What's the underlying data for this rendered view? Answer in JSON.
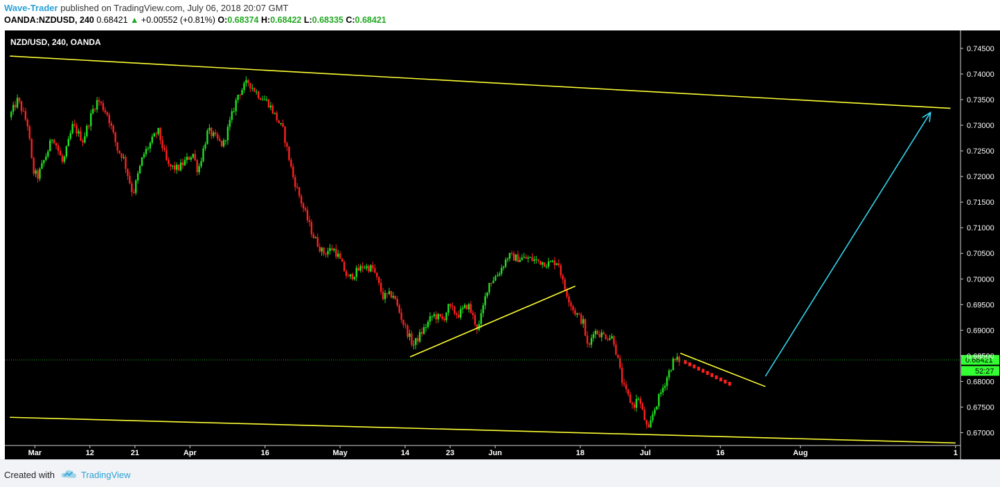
{
  "header": {
    "author": "Wave-Trader",
    "published_text": "published on TradingView.com, July 06, 2018 20:07 GMT",
    "symbol": "OANDA:NZDUSD, 240",
    "last": "0.68421",
    "change": "+0.00552 (+0.81%)",
    "o_label": "O:",
    "o_value": "0.68374",
    "h_label": "H:",
    "h_value": "0.68422",
    "l_label": "L:",
    "l_value": "0.68335",
    "c_label": "C:",
    "c_value": "0.68421"
  },
  "footer": {
    "created_with": "Created with",
    "brand": "TradingView"
  },
  "colors": {
    "background": "#000000",
    "up_candle": "#22e022",
    "down_candle": "#ff2020",
    "trendline": "#ffff33",
    "arrow": "#33d6f0",
    "price_line": "#22a822",
    "price_label_bg": "#33ff33",
    "axis_text": "#ffffff"
  },
  "chart_data": {
    "type": "candlestick",
    "title": "NZD/USD, 240, OANDA",
    "y_ticks": [
      "0.74500",
      "0.74000",
      "0.73500",
      "0.73000",
      "0.72500",
      "0.72000",
      "0.71500",
      "0.71000",
      "0.70500",
      "0.70000",
      "0.69500",
      "0.69000",
      "0.68500",
      "0.68000",
      "0.67500",
      "0.67000"
    ],
    "ylim": [
      0.6675,
      0.7485
    ],
    "x_ticks": [
      {
        "label": "Mar",
        "date": "2018-03-01"
      },
      {
        "label": "12",
        "date": "2018-03-12"
      },
      {
        "label": "21",
        "date": "2018-03-21"
      },
      {
        "label": "Apr",
        "date": "2018-04-01"
      },
      {
        "label": "16",
        "date": "2018-04-16"
      },
      {
        "label": "May",
        "date": "2018-05-01"
      },
      {
        "label": "14",
        "date": "2018-05-14"
      },
      {
        "label": "23",
        "date": "2018-05-23"
      },
      {
        "label": "Jun",
        "date": "2018-06-01"
      },
      {
        "label": "18",
        "date": "2018-06-18"
      },
      {
        "label": "Jul",
        "date": "2018-07-01"
      },
      {
        "label": "16",
        "date": "2018-07-16"
      },
      {
        "label": "Aug",
        "date": "2018-08-01"
      },
      {
        "label": "1",
        "date": "2018-09-01"
      }
    ],
    "current_price": "0.68421",
    "countdown": "52:27",
    "price_path": [
      [
        "2018-02-24",
        0.731
      ],
      [
        "2018-02-26",
        0.735
      ],
      [
        "2018-02-28",
        0.73
      ],
      [
        "2018-03-01",
        0.721
      ],
      [
        "2018-03-02",
        0.72
      ],
      [
        "2018-03-04",
        0.725
      ],
      [
        "2018-03-05",
        0.728
      ],
      [
        "2018-03-07",
        0.7225
      ],
      [
        "2018-03-09",
        0.73
      ],
      [
        "2018-03-11",
        0.727
      ],
      [
        "2018-03-13",
        0.733
      ],
      [
        "2018-03-14",
        0.735
      ],
      [
        "2018-03-16",
        0.732
      ],
      [
        "2018-03-18",
        0.725
      ],
      [
        "2018-03-19",
        0.724
      ],
      [
        "2018-03-21",
        0.7165
      ],
      [
        "2018-03-23",
        0.724
      ],
      [
        "2018-03-26",
        0.729
      ],
      [
        "2018-03-28",
        0.722
      ],
      [
        "2018-03-30",
        0.7215
      ],
      [
        "2018-04-02",
        0.7245
      ],
      [
        "2018-04-03",
        0.721
      ],
      [
        "2018-04-05",
        0.729
      ],
      [
        "2018-04-08",
        0.726
      ],
      [
        "2018-04-11",
        0.736
      ],
      [
        "2018-04-13",
        0.7385
      ],
      [
        "2018-04-15",
        0.736
      ],
      [
        "2018-04-17",
        0.7345
      ],
      [
        "2018-04-20",
        0.729
      ],
      [
        "2018-04-22",
        0.72
      ],
      [
        "2018-04-24",
        0.714
      ],
      [
        "2018-04-26",
        0.7085
      ],
      [
        "2018-04-28",
        0.705
      ],
      [
        "2018-04-30",
        0.706
      ],
      [
        "2018-05-01",
        0.7045
      ],
      [
        "2018-05-03",
        0.7
      ],
      [
        "2018-05-06",
        0.7025
      ],
      [
        "2018-05-08",
        0.702
      ],
      [
        "2018-05-10",
        0.6965
      ],
      [
        "2018-05-12",
        0.697
      ],
      [
        "2018-05-14",
        0.6915
      ],
      [
        "2018-05-16",
        0.687
      ],
      [
        "2018-05-18",
        0.69
      ],
      [
        "2018-05-20",
        0.693
      ],
      [
        "2018-05-22",
        0.692
      ],
      [
        "2018-05-23",
        0.6945
      ],
      [
        "2018-05-25",
        0.693
      ],
      [
        "2018-05-27",
        0.695
      ],
      [
        "2018-05-29",
        0.69
      ],
      [
        "2018-05-31",
        0.699
      ],
      [
        "2018-06-02",
        0.701
      ],
      [
        "2018-06-04",
        0.7045
      ],
      [
        "2018-06-06",
        0.704
      ],
      [
        "2018-06-08",
        0.704
      ],
      [
        "2018-06-10",
        0.7035
      ],
      [
        "2018-06-12",
        0.703
      ],
      [
        "2018-06-14",
        0.7035
      ],
      [
        "2018-06-15",
        0.699
      ],
      [
        "2018-06-17",
        0.694
      ],
      [
        "2018-06-19",
        0.6915
      ],
      [
        "2018-06-20",
        0.686
      ],
      [
        "2018-06-21",
        0.69
      ],
      [
        "2018-06-23",
        0.689
      ],
      [
        "2018-06-25",
        0.6885
      ],
      [
        "2018-06-27",
        0.679
      ],
      [
        "2018-06-29",
        0.675
      ],
      [
        "2018-06-30",
        0.677
      ],
      [
        "2018-07-02",
        0.67
      ],
      [
        "2018-07-03",
        0.674
      ],
      [
        "2018-07-05",
        0.679
      ],
      [
        "2018-07-07",
        0.684
      ],
      [
        "2018-07-08",
        0.6842
      ]
    ],
    "projection": {
      "direction": "down",
      "points": [
        [
          "2018-07-09",
          0.6838
        ],
        [
          "2018-07-18",
          0.6795
        ]
      ]
    },
    "annotations": [
      {
        "type": "trendline",
        "name": "channel-top",
        "from": [
          "2018-02-24",
          0.7435
        ],
        "to": [
          "2018-08-31",
          0.7333
        ]
      },
      {
        "type": "trendline",
        "name": "channel-bottom",
        "from": [
          "2018-02-24",
          0.673
        ],
        "to": [
          "2018-09-01",
          0.668
        ]
      },
      {
        "type": "trendline",
        "name": "support",
        "from": [
          "2018-05-15",
          0.6848
        ],
        "to": [
          "2018-06-17",
          0.6986
        ]
      },
      {
        "type": "trendline",
        "name": "resistance",
        "from": [
          "2018-07-08",
          0.6855
        ],
        "to": [
          "2018-07-25",
          0.679
        ]
      },
      {
        "type": "arrow",
        "name": "target-arrow",
        "from": [
          "2018-07-25",
          0.681
        ],
        "to": [
          "2018-08-27",
          0.7325
        ]
      }
    ]
  }
}
